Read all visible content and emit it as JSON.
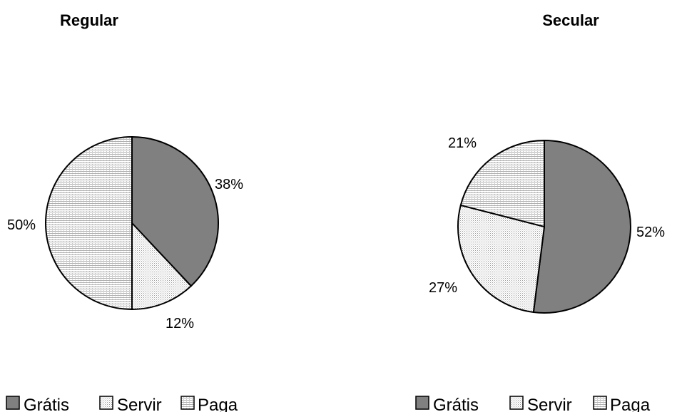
{
  "chart_data": [
    {
      "type": "pie",
      "title": "Regular",
      "categories": [
        "Grátis",
        "Servir",
        "Paga"
      ],
      "values": [
        38,
        12,
        50
      ],
      "labels": [
        "38%",
        "12%",
        "50%"
      ],
      "legend_placement": "bottom"
    },
    {
      "type": "pie",
      "title": "Secular",
      "categories": [
        "Grátis",
        "Servir",
        "Paga"
      ],
      "values": [
        52,
        27,
        21
      ],
      "labels": [
        "52%",
        "27%",
        "21%"
      ],
      "legend_placement": "bottom"
    }
  ],
  "colors": {
    "gratis": "#808080",
    "servir": "#ececec",
    "paga": "#d9d9d9",
    "outline": "#000000"
  }
}
